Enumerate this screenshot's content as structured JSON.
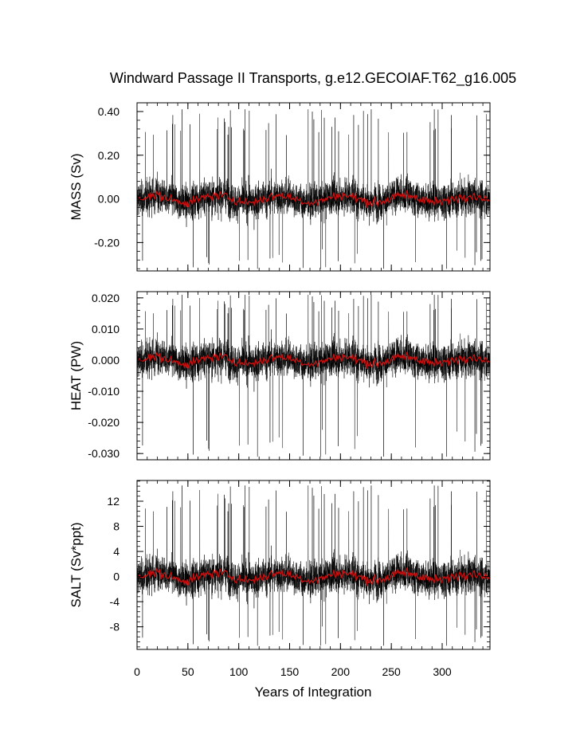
{
  "chart_data": {
    "type": "line",
    "title": "Windward Passage II Transports, g.e12.GECOIAF.T62_g16.005",
    "xlabel": "Years of Integration",
    "xlim": [
      0,
      347
    ],
    "xticks": [
      0,
      50,
      100,
      150,
      200,
      250,
      300
    ],
    "xtick_labels": [
      "0",
      "50",
      "100",
      "150",
      "200",
      "250",
      "300"
    ],
    "series_colors": {
      "monthly": "#000000",
      "annual": "#cc1010"
    },
    "panels": [
      {
        "id": "mass",
        "ylabel": "MASS (Sv)",
        "ylim": [
          -0.33,
          0.44
        ],
        "yticks": [
          0.4,
          0.2,
          0.0,
          -0.2
        ],
        "ytick_labels": [
          "0.40",
          "0.20",
          "0.00",
          "-0.20"
        ],
        "minor_step": 0.04,
        "monthly_std": 0.09,
        "annual_std": 0.022,
        "spike_max": 0.41,
        "spike_min": -0.32
      },
      {
        "id": "heat",
        "ylabel": "HEAT (PW)",
        "ylim": [
          -0.032,
          0.022
        ],
        "yticks": [
          0.02,
          0.01,
          0.0,
          -0.01,
          -0.02,
          -0.03
        ],
        "ytick_labels": [
          "0.020",
          "0.010",
          "0.000",
          "-0.010",
          "-0.020",
          "-0.030"
        ],
        "minor_step": 0.002,
        "monthly_std": 0.0065,
        "annual_std": 0.0015,
        "spike_max": 0.021,
        "spike_min": -0.031
      },
      {
        "id": "salt",
        "ylabel": "SALT (Sv*ppt)",
        "ylim": [
          -11.6,
          15.3
        ],
        "yticks": [
          12,
          8,
          4,
          0,
          -4,
          -8
        ],
        "ytick_labels": [
          "12",
          "8",
          "4",
          "0",
          "-4",
          "-8"
        ],
        "minor_step": 0.8,
        "monthly_std": 3.2,
        "annual_std": 0.8,
        "spike_max": 14.5,
        "spike_min": -11.0
      }
    ]
  }
}
